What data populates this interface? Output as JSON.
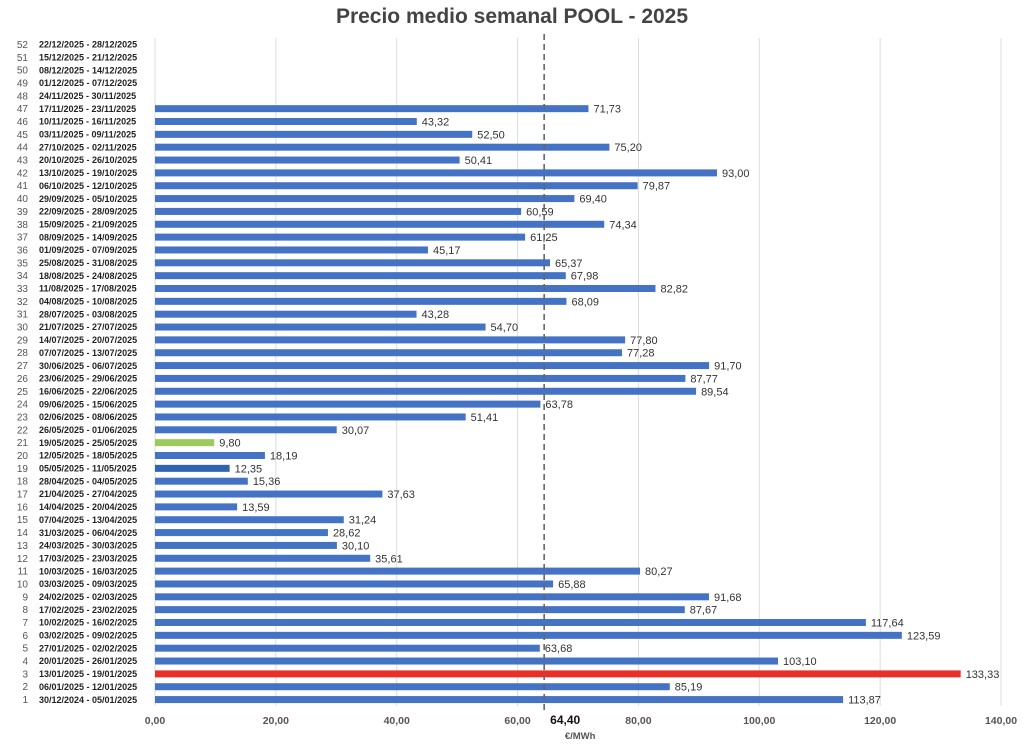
{
  "chart_data": {
    "type": "bar",
    "orientation": "horizontal",
    "title": "Precio medio semanal POOL - 2025",
    "xlabel": "€/MWh",
    "ylabel": "",
    "xlim": [
      0,
      140
    ],
    "x_ticks": [
      "0,00",
      "20,00",
      "40,00",
      "60,00",
      "80,00",
      "100,00",
      "120,00",
      "140,00"
    ],
    "grid": "vertical",
    "reference_line": {
      "value": 64.4,
      "label": "64,40",
      "style": "dashed",
      "color": "#666666"
    },
    "default_color": "#4472C4",
    "categories": [
      {
        "week": "1",
        "label": "30/12/2024 - 05/01/2025",
        "value": 113.87,
        "value_label": "113,87"
      },
      {
        "week": "2",
        "label": "06/01/2025 - 12/01/2025",
        "value": 85.19,
        "value_label": "85,19"
      },
      {
        "week": "3",
        "label": "13/01/2025 - 19/01/2025",
        "value": 133.33,
        "value_label": "133,33",
        "color": "#E8302A"
      },
      {
        "week": "4",
        "label": "20/01/2025 - 26/01/2025",
        "value": 103.1,
        "value_label": "103,10"
      },
      {
        "week": "5",
        "label": "27/01/2025 - 02/02/2025",
        "value": 63.68,
        "value_label": "63,68"
      },
      {
        "week": "6",
        "label": "03/02/2025 - 09/02/2025",
        "value": 123.59,
        "value_label": "123,59"
      },
      {
        "week": "7",
        "label": "10/02/2025 - 16/02/2025",
        "value": 117.64,
        "value_label": "117,64"
      },
      {
        "week": "8",
        "label": "17/02/2025 - 23/02/2025",
        "value": 87.67,
        "value_label": "87,67"
      },
      {
        "week": "9",
        "label": "24/02/2025 - 02/03/2025",
        "value": 91.68,
        "value_label": "91,68"
      },
      {
        "week": "10",
        "label": "03/03/2025 - 09/03/2025",
        "value": 65.88,
        "value_label": "65,88"
      },
      {
        "week": "11",
        "label": "10/03/2025 - 16/03/2025",
        "value": 80.27,
        "value_label": "80,27"
      },
      {
        "week": "12",
        "label": "17/03/2025 - 23/03/2025",
        "value": 35.61,
        "value_label": "35,61"
      },
      {
        "week": "13",
        "label": "24/03/2025 - 30/03/2025",
        "value": 30.1,
        "value_label": "30,10"
      },
      {
        "week": "14",
        "label": "31/03/2025 - 06/04/2025",
        "value": 28.62,
        "value_label": "28,62"
      },
      {
        "week": "15",
        "label": "07/04/2025 - 13/04/2025",
        "value": 31.24,
        "value_label": "31,24"
      },
      {
        "week": "16",
        "label": "14/04/2025 - 20/04/2025",
        "value": 13.59,
        "value_label": "13,59"
      },
      {
        "week": "17",
        "label": "21/04/2025 - 27/04/2025",
        "value": 37.63,
        "value_label": "37,63"
      },
      {
        "week": "18",
        "label": "28/04/2025 - 04/05/2025",
        "value": 15.36,
        "value_label": "15,36"
      },
      {
        "week": "19",
        "label": "05/05/2025 - 11/05/2025",
        "value": 12.35,
        "value_label": "12,35",
        "color": "#2E64B0"
      },
      {
        "week": "20",
        "label": "12/05/2025 - 18/05/2025",
        "value": 18.19,
        "value_label": "18,19"
      },
      {
        "week": "21",
        "label": "19/05/2025 - 25/05/2025",
        "value": 9.8,
        "value_label": "9,80",
        "color": "#9BCB5E"
      },
      {
        "week": "22",
        "label": "26/05/2025 - 01/06/2025",
        "value": 30.07,
        "value_label": "30,07"
      },
      {
        "week": "23",
        "label": "02/06/2025 - 08/06/2025",
        "value": 51.41,
        "value_label": "51,41"
      },
      {
        "week": "24",
        "label": "09/06/2025 - 15/06/2025",
        "value": 63.78,
        "value_label": "63,78"
      },
      {
        "week": "25",
        "label": "16/06/2025 - 22/06/2025",
        "value": 89.54,
        "value_label": "89,54"
      },
      {
        "week": "26",
        "label": "23/06/2025 - 29/06/2025",
        "value": 87.77,
        "value_label": "87,77"
      },
      {
        "week": "27",
        "label": "30/06/2025 - 06/07/2025",
        "value": 91.7,
        "value_label": "91,70"
      },
      {
        "week": "28",
        "label": "07/07/2025 - 13/07/2025",
        "value": 77.28,
        "value_label": "77,28"
      },
      {
        "week": "29",
        "label": "14/07/2025 - 20/07/2025",
        "value": 77.8,
        "value_label": "77,80"
      },
      {
        "week": "30",
        "label": "21/07/2025 - 27/07/2025",
        "value": 54.7,
        "value_label": "54,70"
      },
      {
        "week": "31",
        "label": "28/07/2025 - 03/08/2025",
        "value": 43.28,
        "value_label": "43,28"
      },
      {
        "week": "32",
        "label": "04/08/2025 - 10/08/2025",
        "value": 68.09,
        "value_label": "68,09"
      },
      {
        "week": "33",
        "label": "11/08/2025 - 17/08/2025",
        "value": 82.82,
        "value_label": "82,82"
      },
      {
        "week": "34",
        "label": "18/08/2025 - 24/08/2025",
        "value": 67.98,
        "value_label": "67,98"
      },
      {
        "week": "35",
        "label": "25/08/2025 - 31/08/2025",
        "value": 65.37,
        "value_label": "65,37"
      },
      {
        "week": "36",
        "label": "01/09/2025 - 07/09/2025",
        "value": 45.17,
        "value_label": "45,17"
      },
      {
        "week": "37",
        "label": "08/09/2025 - 14/09/2025",
        "value": 61.25,
        "value_label": "61,25"
      },
      {
        "week": "38",
        "label": "15/09/2025 - 21/09/2025",
        "value": 74.34,
        "value_label": "74,34"
      },
      {
        "week": "39",
        "label": "22/09/2025 - 28/09/2025",
        "value": 60.59,
        "value_label": "60,59"
      },
      {
        "week": "40",
        "label": "29/09/2025 - 05/10/2025",
        "value": 69.4,
        "value_label": "69,40"
      },
      {
        "week": "41",
        "label": "06/10/2025 - 12/10/2025",
        "value": 79.87,
        "value_label": "79,87"
      },
      {
        "week": "42",
        "label": "13/10/2025 - 19/10/2025",
        "value": 93.0,
        "value_label": "93,00"
      },
      {
        "week": "43",
        "label": "20/10/2025 - 26/10/2025",
        "value": 50.41,
        "value_label": "50,41"
      },
      {
        "week": "44",
        "label": "27/10/2025 - 02/11/2025",
        "value": 75.2,
        "value_label": "75,20"
      },
      {
        "week": "45",
        "label": "03/11/2025 - 09/11/2025",
        "value": 52.5,
        "value_label": "52,50"
      },
      {
        "week": "46",
        "label": "10/11/2025 - 16/11/2025",
        "value": 43.32,
        "value_label": "43,32"
      },
      {
        "week": "47",
        "label": "17/11/2025 - 23/11/2025",
        "value": 71.73,
        "value_label": "71,73"
      },
      {
        "week": "48",
        "label": "24/11/2025 - 30/11/2025",
        "value": null,
        "value_label": ""
      },
      {
        "week": "49",
        "label": "01/12/2025 - 07/12/2025",
        "value": null,
        "value_label": ""
      },
      {
        "week": "50",
        "label": "08/12/2025 - 14/12/2025",
        "value": null,
        "value_label": ""
      },
      {
        "week": "51",
        "label": "15/12/2025 - 21/12/2025",
        "value": null,
        "value_label": ""
      },
      {
        "week": "52",
        "label": "22/12/2025 - 28/12/2025",
        "value": null,
        "value_label": ""
      }
    ]
  }
}
